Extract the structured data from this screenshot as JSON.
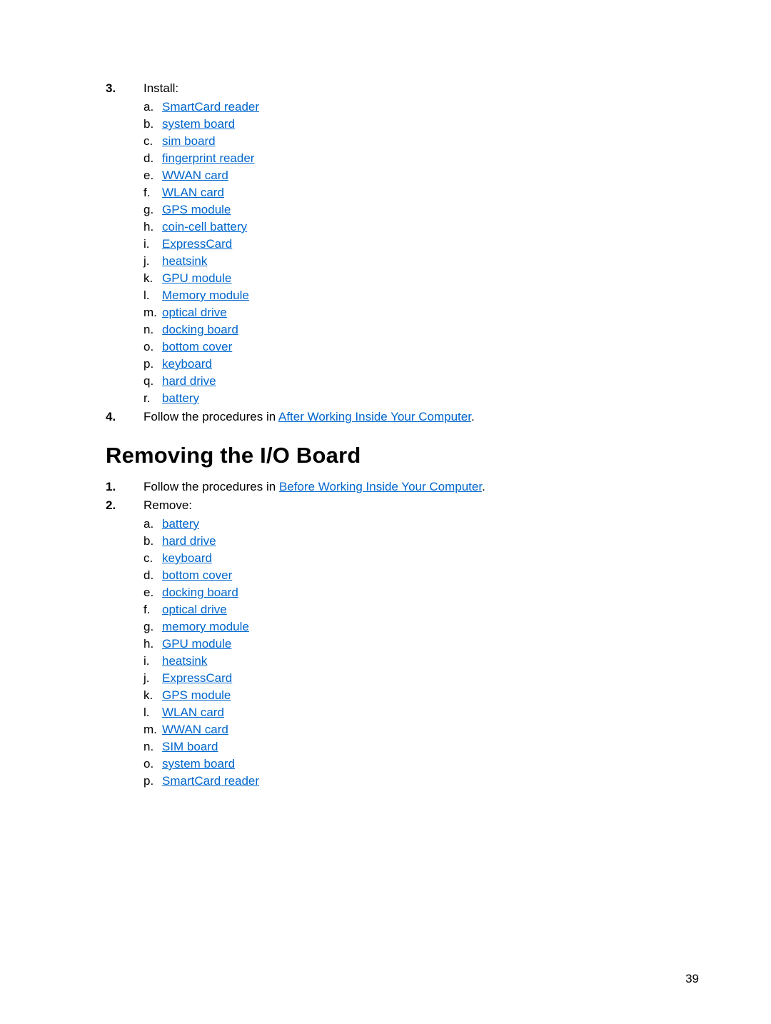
{
  "colors": {
    "link": "#0066cc",
    "text": "#000000",
    "background": "#ffffff"
  },
  "typography": {
    "body_fontsize": 17,
    "heading_fontsize": 31,
    "line_height": 24,
    "font_family": "Trebuchet MS"
  },
  "page_number": "39",
  "section1": {
    "step3": {
      "intro": "Install:",
      "items": [
        "SmartCard reader",
        "system board",
        "sim board",
        "fingerprint reader",
        "WWAN card",
        "WLAN card",
        "GPS module",
        "coin-cell battery",
        "ExpressCard",
        "heatsink",
        "GPU module",
        "Memory module",
        "optical drive",
        "docking board",
        "bottom cover",
        "keyboard",
        "hard drive",
        "battery"
      ]
    },
    "step4": {
      "pre": "Follow the procedures in ",
      "link": "After Working Inside Your Computer",
      "post": "."
    }
  },
  "heading": "Removing the I/O Board",
  "section2": {
    "step1": {
      "pre": "Follow the procedures in ",
      "link": "Before Working Inside Your Computer",
      "post": "."
    },
    "step2": {
      "intro": "Remove:",
      "items": [
        "battery",
        "hard drive",
        "keyboard",
        "bottom cover",
        "docking board",
        "optical drive",
        "memory module",
        "GPU module",
        "heatsink",
        "ExpressCard",
        "GPS module",
        "WLAN card",
        "WWAN card",
        "SIM board",
        "system board",
        "SmartCard reader"
      ]
    }
  }
}
